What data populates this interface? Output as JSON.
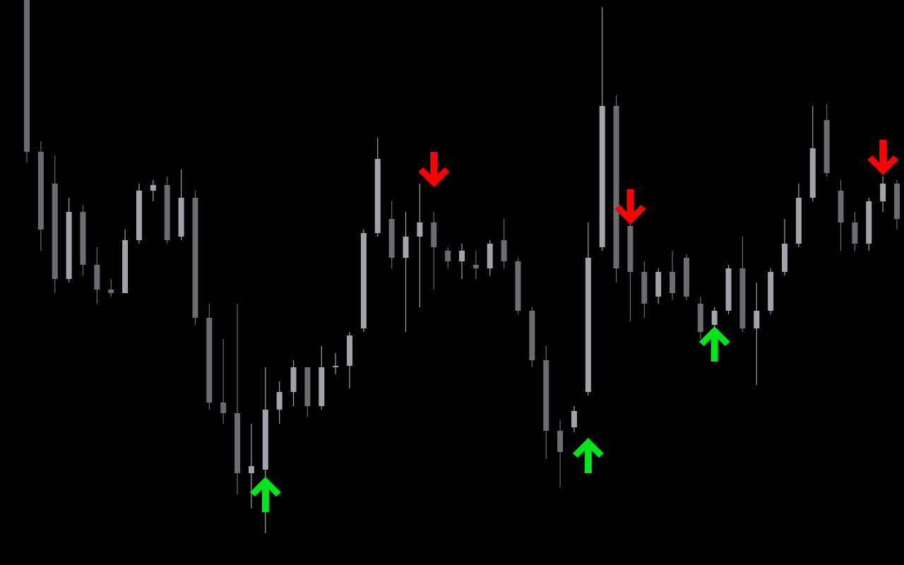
{
  "chart_data": {
    "type": "candlestick",
    "ylim": [
      0,
      800
    ],
    "up_color": "#a2a2aa",
    "down_color": "#6c6c72",
    "open": [
      800,
      585,
      540,
      405,
      500,
      425,
      390,
      385,
      460,
      530,
      538,
      465,
      520,
      350,
      230,
      215,
      130,
      135,
      220,
      245,
      280,
      225,
      280,
      282,
      335,
      470,
      490,
      435,
      465,
      485,
      445,
      430,
      425,
      420,
      460,
      430,
      360,
      290,
      190,
      195,
      245,
      450,
      650,
      480,
      415,
      380,
      415,
      435,
      370,
      340,
      360,
      420,
      335,
      360,
      415,
      455,
      520,
      630,
      530,
      485,
      455,
      515,
      540
    ],
    "high": [
      800,
      600,
      580,
      520,
      510,
      450,
      405,
      475,
      540,
      545,
      550,
      560,
      530,
      370,
      320,
      370,
      200,
      280,
      260,
      290,
      280,
      310,
      300,
      330,
      475,
      605,
      515,
      500,
      540,
      500,
      450,
      455,
      445,
      460,
      490,
      435,
      365,
      310,
      205,
      225,
      485,
      790,
      665,
      500,
      430,
      420,
      445,
      440,
      380,
      365,
      425,
      465,
      400,
      420,
      490,
      540,
      650,
      652,
      545,
      500,
      520,
      550,
      545
    ],
    "low": [
      570,
      445,
      385,
      400,
      410,
      370,
      380,
      385,
      455,
      515,
      455,
      460,
      340,
      220,
      200,
      100,
      80,
      45,
      200,
      225,
      210,
      220,
      270,
      250,
      330,
      465,
      420,
      330,
      365,
      390,
      420,
      405,
      405,
      410,
      420,
      355,
      280,
      150,
      110,
      188,
      240,
      445,
      400,
      345,
      350,
      370,
      375,
      375,
      320,
      330,
      355,
      330,
      255,
      355,
      410,
      450,
      515,
      550,
      445,
      445,
      445,
      500,
      475
    ],
    "close": [
      585,
      475,
      405,
      500,
      425,
      390,
      385,
      460,
      530,
      538,
      460,
      520,
      350,
      230,
      215,
      130,
      140,
      220,
      245,
      280,
      225,
      280,
      282,
      325,
      470,
      575,
      435,
      465,
      485,
      450,
      430,
      445,
      420,
      455,
      430,
      360,
      290,
      190,
      160,
      218,
      435,
      650,
      420,
      415,
      370,
      415,
      385,
      380,
      330,
      360,
      420,
      335,
      360,
      415,
      455,
      520,
      590,
      555,
      485,
      455,
      515,
      540,
      490
    ],
    "signals": [
      {
        "direction": "up",
        "color": "#00e51c",
        "values": [
          null,
          null,
          null,
          null,
          null,
          null,
          null,
          null,
          null,
          null,
          null,
          null,
          null,
          null,
          null,
          null,
          null,
          125,
          null,
          null,
          null,
          null,
          null,
          null,
          null,
          null,
          null,
          null,
          null,
          null,
          null,
          null,
          null,
          null,
          null,
          null,
          null,
          null,
          null,
          null,
          180,
          null,
          null,
          null,
          null,
          null,
          null,
          null,
          null,
          338,
          null,
          null,
          null,
          null,
          null,
          null,
          null,
          null,
          null,
          null,
          null,
          null,
          null
        ]
      },
      {
        "direction": "down",
        "color": "#ff0000",
        "values": [
          null,
          null,
          null,
          null,
          null,
          null,
          null,
          null,
          null,
          null,
          null,
          null,
          null,
          null,
          null,
          null,
          null,
          null,
          null,
          null,
          null,
          null,
          null,
          null,
          null,
          null,
          null,
          null,
          null,
          535,
          null,
          null,
          null,
          null,
          null,
          null,
          null,
          null,
          null,
          null,
          null,
          null,
          null,
          482,
          null,
          null,
          null,
          null,
          null,
          null,
          null,
          null,
          null,
          null,
          null,
          null,
          null,
          null,
          null,
          null,
          null,
          552,
          null
        ]
      }
    ]
  }
}
